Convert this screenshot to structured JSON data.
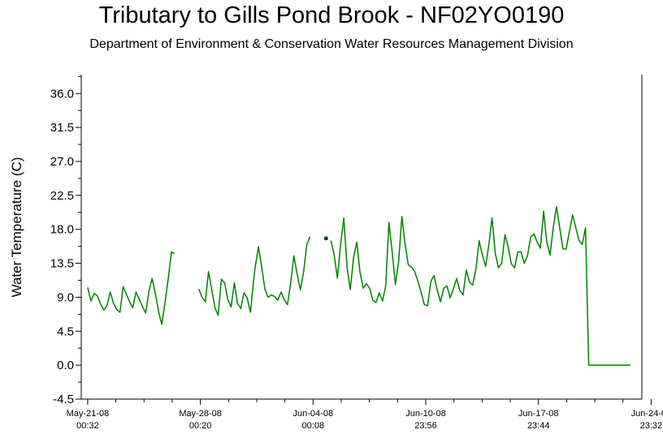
{
  "chart_data": {
    "type": "line",
    "title": "Tributary to Gills Pond Brook - NF02YO0190",
    "subtitle": "Department of Environment & Conservation Water Resources Management Division",
    "ylabel": "Water Temperature (C)",
    "xlabel": "",
    "ylim": [
      -4.5,
      38.5
    ],
    "xlim_days": [
      -0.4,
      34.4
    ],
    "yticks": [
      "36.0",
      "31.5",
      "27.0",
      "22.5",
      "18.0",
      "13.5",
      "9.0",
      "4.5",
      "0.0",
      "-4.5"
    ],
    "xticks": [
      {
        "line1": "May-21-08",
        "line2": "00:32"
      },
      {
        "line1": "May-28-08",
        "line2": "00:20"
      },
      {
        "line1": "Jun-04-08",
        "line2": "00:08"
      },
      {
        "line1": "Jun-10-08",
        "line2": "23:56"
      },
      {
        "line1": "Jun-17-08",
        "line2": "23:44"
      },
      {
        "line1": "Jun-24-08",
        "line2": "23:32"
      }
    ],
    "grid": false,
    "colors": {
      "series": "#008000",
      "axis": "#000000"
    },
    "series": [
      {
        "name": "",
        "segments": [
          {
            "x": [
              0.0,
              0.2,
              0.4,
              0.6,
              0.8,
              1.0,
              1.2,
              1.4,
              1.6,
              1.8,
              2.0,
              2.2,
              2.4,
              2.6,
              2.8,
              3.0,
              3.2,
              3.4,
              3.6,
              3.8,
              4.0,
              4.2,
              4.4,
              4.6,
              4.8,
              5.0,
              5.2,
              5.4,
              5.6,
              5.8,
              6.0
            ],
            "y": [
              10.3,
              8.5,
              9.5,
              9.2,
              8.1,
              7.3,
              7.9,
              9.7,
              8.2,
              7.4,
              7.0,
              10.4,
              9.4,
              8.4,
              7.6,
              9.7,
              8.7,
              7.8,
              6.9,
              9.8,
              11.5,
              9.5,
              7.1,
              5.4,
              8.3,
              11.5,
              15.0,
              14.8,
              null,
              null,
              null
            ]
          },
          {
            "x": [
              6.9,
              7.1,
              7.3,
              7.5,
              7.7,
              7.9,
              8.1,
              8.3,
              8.5,
              8.7,
              8.9,
              9.1,
              9.3,
              9.5,
              9.7,
              9.9,
              10.1,
              10.3,
              10.4,
              10.6,
              10.8,
              11.0,
              11.2,
              11.4,
              11.6,
              11.8,
              12.0,
              12.2,
              12.4,
              12.6,
              12.8,
              13.0,
              13.2,
              13.4,
              13.6,
              13.8,
              14.0,
              14.2
            ],
            "y": [
              10.1,
              9.0,
              8.4,
              12.4,
              10.0,
              7.6,
              6.6,
              11.4,
              10.9,
              8.7,
              7.7,
              10.9,
              8.2,
              7.5,
              9.6,
              8.9,
              7.0,
              11.3,
              13.0,
              15.7,
              13.0,
              10.1,
              9.0,
              9.3,
              9.1,
              8.6,
              9.7,
              8.7,
              8.0,
              10.9,
              14.5,
              12.1,
              10.0,
              12.3,
              16.0,
              17.0,
              null,
              null
            ]
          },
          {
            "x": [
              15.1,
              15.3,
              15.5,
              15.7,
              15.9,
              16.1,
              16.3,
              16.5,
              16.7,
              16.9,
              17.1,
              17.3,
              17.5,
              17.7,
              17.9,
              18.1,
              18.3,
              18.5,
              18.7,
              18.9,
              19.1,
              19.3,
              19.5,
              19.7,
              19.9,
              20.1,
              20.3,
              20.5,
              20.7,
              20.9,
              21.1,
              21.3,
              21.5,
              21.7,
              21.9,
              22.1,
              22.3,
              22.5,
              22.7,
              22.9,
              23.1,
              23.3,
              23.5,
              23.7,
              23.9,
              24.1,
              24.3,
              24.5,
              24.7,
              24.9,
              25.1,
              25.3,
              25.5,
              25.7,
              25.9,
              26.1,
              26.3,
              26.5,
              26.7,
              26.9,
              27.1,
              27.3,
              27.5,
              27.7,
              27.9,
              28.1,
              28.3,
              28.5,
              28.7,
              28.9,
              29.1,
              29.3,
              29.5,
              29.7,
              29.9,
              30.1,
              30.3,
              30.5,
              30.7,
              30.9,
              31.1,
              31.3,
              31.5,
              31.7,
              31.9,
              32.1,
              32.3,
              32.5,
              32.7,
              32.9,
              33.1,
              33.3,
              33.4,
              33.7
            ],
            "y": [
              16.5,
              14.6,
              11.5,
              16.0,
              19.5,
              12.9,
              10.0,
              14.2,
              16.3,
              12.4,
              10.2,
              10.8,
              10.2,
              8.6,
              8.3,
              9.6,
              8.5,
              10.5,
              18.9,
              15.0,
              10.7,
              13.7,
              19.7,
              16.1,
              13.3,
              13.0,
              12.4,
              11.1,
              9.6,
              8.0,
              7.9,
              11.1,
              11.9,
              9.9,
              8.4,
              10.2,
              10.5,
              8.9,
              10.1,
              11.5,
              9.9,
              9.3,
              12.6,
              11.0,
              10.6,
              12.8,
              16.5,
              14.6,
              13.1,
              15.9,
              19.5,
              14.8,
              12.9,
              13.5,
              17.3,
              15.7,
              13.4,
              12.9,
              15.0,
              15.0,
              13.5,
              14.5,
              17.0,
              17.4,
              16.3,
              15.5,
              20.4,
              16.3,
              14.6,
              18.2,
              21.0,
              18.2,
              15.4,
              15.4,
              17.7,
              19.9,
              18.2,
              16.5,
              16.0,
              18.2,
              0.0,
              0.0,
              0.0,
              0.0,
              0.0,
              0.0,
              0.0,
              0.0,
              0.0,
              0.0,
              0.0,
              0.0,
              0.0,
              0.0
            ]
          }
        ],
        "points": [
          {
            "x": 15.1,
            "y": 16.8
          }
        ]
      }
    ]
  }
}
